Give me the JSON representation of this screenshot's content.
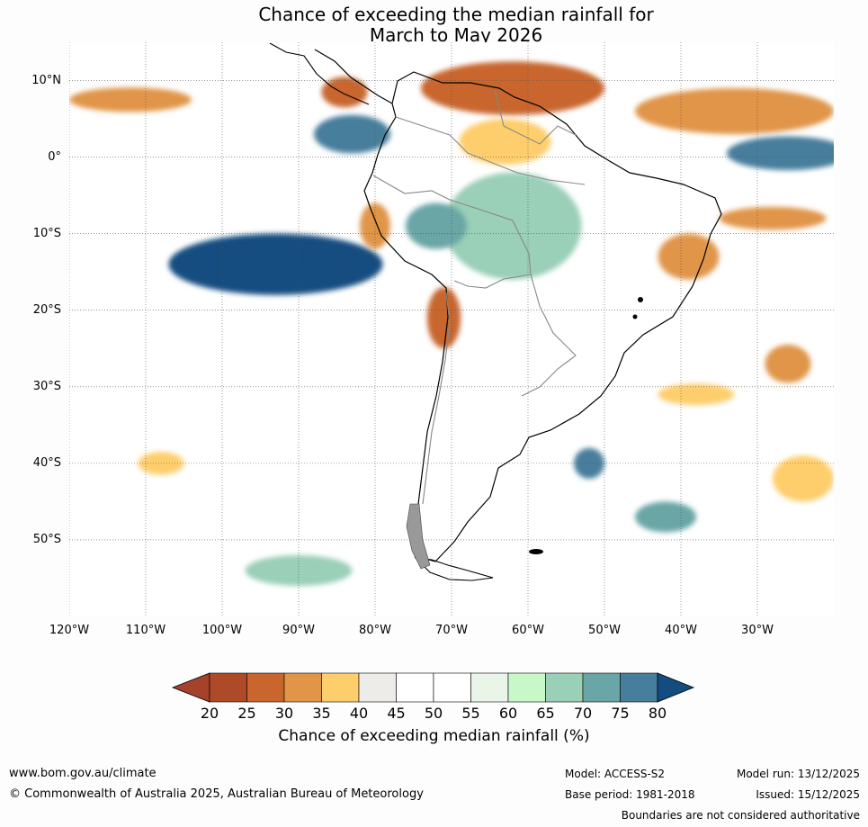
{
  "title": {
    "line1": "Chance of exceeding the median rainfall for",
    "line2": "March to May 2026"
  },
  "map": {
    "region": "South America and surrounding oceans",
    "lat_labels": [
      "10°N",
      "0°",
      "10°S",
      "20°S",
      "30°S",
      "40°S",
      "50°S"
    ],
    "lat_values": [
      10,
      0,
      -10,
      -20,
      -30,
      -40,
      -50
    ],
    "lon_labels": [
      "120°W",
      "110°W",
      "100°W",
      "90°W",
      "80°W",
      "70°W",
      "60°W",
      "50°W",
      "40°W",
      "30°W"
    ],
    "lon_values": [
      -120,
      -110,
      -100,
      -90,
      -80,
      -70,
      -60,
      -50,
      -40,
      -30
    ],
    "lat_range": [
      -60,
      15
    ],
    "lon_range": [
      -120,
      -20
    ],
    "regions": [
      {
        "name": "Caribbean / northern SA dry",
        "lon": -62,
        "lat": 9,
        "rx": 12,
        "ry": 3.5,
        "level": 25
      },
      {
        "name": "Atlantic 7N dry band",
        "lon": -33,
        "lat": 6,
        "rx": 13,
        "ry": 3,
        "level": 30
      },
      {
        "name": "Pacific 8N dry band",
        "lon": -112,
        "lat": 7.5,
        "rx": 8,
        "ry": 1.6,
        "level": 30
      },
      {
        "name": "Panama dry",
        "lon": -84,
        "lat": 8.5,
        "rx": 3,
        "ry": 2,
        "level": 25
      },
      {
        "name": "Colombia Pacific wet",
        "lon": -83,
        "lat": 3,
        "rx": 5,
        "ry": 2.5,
        "level": 75
      },
      {
        "name": "Atlantic equatorial wet",
        "lon": -26,
        "lat": 0.5,
        "rx": 8,
        "ry": 2.2,
        "level": 75
      },
      {
        "name": "Northern Brazil dry",
        "lon": -63,
        "lat": 2,
        "rx": 6,
        "ry": 3,
        "level": 35
      },
      {
        "name": "Central Brazil wet",
        "lon": -62,
        "lat": -9,
        "rx": 9,
        "ry": 7,
        "level": 65
      },
      {
        "name": "Peru wet",
        "lon": -72,
        "lat": -9,
        "rx": 4,
        "ry": 3,
        "level": 70
      },
      {
        "name": "East Pacific wet",
        "lon": -93,
        "lat": -14,
        "rx": 14,
        "ry": 4,
        "level": 80
      },
      {
        "name": "Peru coast dry",
        "lon": -80,
        "lat": -9,
        "rx": 2,
        "ry": 3,
        "level": 30
      },
      {
        "name": "Atacama dry",
        "lon": -71,
        "lat": -21,
        "rx": 2.2,
        "ry": 4,
        "level": 25
      },
      {
        "name": "NE Brazil dry",
        "lon": -39,
        "lat": -13,
        "rx": 4,
        "ry": 3,
        "level": 30
      },
      {
        "name": "Atlantic 9S dry",
        "lon": -28,
        "lat": -8,
        "rx": 7,
        "ry": 1.5,
        "level": 30
      },
      {
        "name": "South Atlantic dry",
        "lon": -38,
        "lat": -31,
        "rx": 5,
        "ry": 1.4,
        "level": 35
      },
      {
        "name": "South Atlantic 25S dry",
        "lon": -26,
        "lat": -27,
        "rx": 3,
        "ry": 2.5,
        "level": 30
      },
      {
        "name": "South Atlantic 41S wet",
        "lon": -52,
        "lat": -40,
        "rx": 2,
        "ry": 2,
        "level": 75
      },
      {
        "name": "South Atlantic 47S wet",
        "lon": -42,
        "lat": -47,
        "rx": 4,
        "ry": 2,
        "level": 70
      },
      {
        "name": "South Atlantic 42S dry",
        "lon": -24,
        "lat": -42,
        "rx": 4,
        "ry": 3,
        "level": 35
      },
      {
        "name": "Pacific 55S wet",
        "lon": -90,
        "lat": -54,
        "rx": 7,
        "ry": 2,
        "level": 65
      },
      {
        "name": "Pacific 40S dry",
        "lon": -108,
        "lat": -40,
        "rx": 3,
        "ry": 1.5,
        "level": 35
      }
    ]
  },
  "colorbar": {
    "ticks": [
      "20",
      "25",
      "30",
      "35",
      "40",
      "45",
      "50",
      "55",
      "60",
      "65",
      "70",
      "75",
      "80"
    ],
    "colors": [
      "#a4432a",
      "#ae4a28",
      "#c8662e",
      "#e09548",
      "#fece6c",
      "#eeece8",
      "#ffffff",
      "#ffffff",
      "#e9f5e9",
      "#c8f8c8",
      "#9acfb8",
      "#6aa6a6",
      "#467e9c",
      "#134d80"
    ],
    "label": "Chance of exceeding median rainfall (%)"
  },
  "footer": {
    "website": "www.bom.gov.au/climate",
    "copyright": "© Commonwealth of Australia 2025, Australian Bureau of Meteorology",
    "model": "Model: ACCESS-S2",
    "base_period": "Base period: 1981-2018",
    "model_run": "Model run: 13/12/2025",
    "issued": "Issued: 15/12/2025",
    "disclaimer": "Boundaries are not considered authoritative"
  }
}
